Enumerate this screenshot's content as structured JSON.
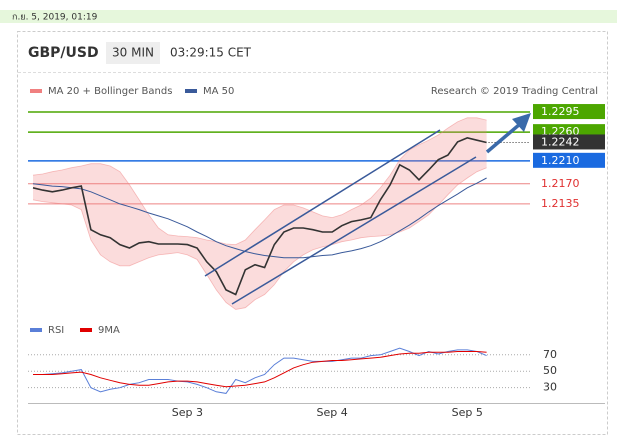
{
  "timestamp": "ก.ย. 5, 2019, 01:19",
  "header": {
    "symbol": "GBP/USD",
    "interval": "30 MIN",
    "time": "03:29:15 CET",
    "credit": "Research © 2019 Trading Central"
  },
  "chart_data": [
    {
      "type": "line",
      "categories": [
        null,
        null,
        null,
        null,
        null,
        null,
        null,
        null,
        null,
        null,
        null,
        null,
        null,
        null,
        null,
        null,
        "Sep 3",
        null,
        null,
        null,
        null,
        null,
        null,
        null,
        null,
        null,
        null,
        null,
        null,
        null,
        null,
        "Sep 4",
        null,
        null,
        null,
        null,
        null,
        null,
        null,
        null,
        null,
        null,
        null,
        null,
        null,
        "Sep 5",
        null,
        null
      ],
      "price": {
        "color": "#333333",
        "values": [
          1.2163,
          1.2159,
          1.2156,
          1.2159,
          1.2163,
          1.2166,
          1.209,
          1.2081,
          1.2076,
          1.2064,
          1.2058,
          1.2067,
          1.2069,
          1.2065,
          1.2065,
          1.2065,
          1.2064,
          1.2058,
          1.2034,
          1.2017,
          1.1985,
          1.1977,
          1.202,
          1.2029,
          1.2024,
          1.2064,
          1.2086,
          1.2093,
          1.2093,
          1.209,
          1.2086,
          1.2086,
          1.2097,
          1.2104,
          1.2107,
          1.2111,
          1.2142,
          1.2168,
          1.2203,
          1.2194,
          1.2177,
          1.2194,
          1.2212,
          1.222,
          1.2243,
          1.225,
          1.2246,
          1.2242
        ]
      },
      "series": [
        {
          "name": "MA 20 + Bollinger Bands",
          "color": "#f08080",
          "upper": [
            1.2185,
            1.2187,
            1.2191,
            1.2194,
            1.2198,
            1.2201,
            1.2205,
            1.2205,
            1.2201,
            1.2191,
            1.2168,
            1.2142,
            1.2116,
            1.2093,
            1.2081,
            1.2079,
            1.2078,
            1.2076,
            1.2072,
            1.2069,
            1.2065,
            1.2064,
            1.2072,
            1.209,
            1.2107,
            1.2125,
            1.2133,
            1.2133,
            1.2128,
            1.2121,
            1.2114,
            1.2111,
            1.2116,
            1.2125,
            1.2133,
            1.2145,
            1.2163,
            1.2185,
            1.2212,
            1.2229,
            1.2238,
            1.2246,
            1.2255,
            1.2267,
            1.2278,
            1.2285,
            1.2285,
            1.2281
          ],
          "lower": [
            1.2142,
            1.2139,
            1.2137,
            1.2135,
            1.2133,
            1.2125,
            1.2072,
            1.2046,
            1.2034,
            1.2027,
            1.2027,
            1.2034,
            1.2041,
            1.2046,
            1.2048,
            1.205,
            1.2046,
            1.2038,
            1.2012,
            1.1985,
            1.1963,
            1.1951,
            1.1954,
            1.1968,
            1.1977,
            1.1994,
            1.2017,
            1.2034,
            1.2046,
            1.2055,
            1.206,
            1.2064,
            1.2069,
            1.2072,
            1.2076,
            1.2078,
            1.2079,
            1.2081,
            1.2086,
            1.2093,
            1.2104,
            1.2116,
            1.2133,
            1.2151,
            1.2168,
            1.218,
            1.2191,
            1.2198
          ]
        },
        {
          "name": "MA 50",
          "color": "#3a5a9a",
          "values": [
            1.217,
            1.2168,
            1.2166,
            1.2165,
            1.2163,
            1.2161,
            1.2156,
            1.2149,
            1.2142,
            1.2135,
            1.213,
            1.2125,
            1.2119,
            1.2114,
            1.2109,
            1.2102,
            1.2095,
            1.2086,
            1.2078,
            1.2069,
            1.2062,
            1.2057,
            1.2052,
            1.2048,
            1.2045,
            1.2043,
            1.2041,
            1.2041,
            1.2041,
            1.2043,
            1.2045,
            1.2046,
            1.205,
            1.2053,
            1.2057,
            1.2062,
            1.2069,
            1.2078,
            1.2088,
            1.2098,
            1.2109,
            1.2121,
            1.2132,
            1.2142,
            1.2152,
            1.2163,
            1.2171,
            1.218
          ]
        }
      ],
      "levels": [
        {
          "value": 1.2295,
          "label": "1.2295",
          "color": "#4ca600",
          "style": "box"
        },
        {
          "value": 1.226,
          "label": "1.2260",
          "color": "#4ca600",
          "style": "box"
        },
        {
          "value": 1.2242,
          "label": "1.2242",
          "color": "#333333",
          "style": "current"
        },
        {
          "value": 1.221,
          "label": "1.2210",
          "color": "#1a6ae0",
          "style": "box"
        },
        {
          "value": 1.217,
          "label": "1.2170",
          "color": "#e03030",
          "style": "text"
        },
        {
          "value": 1.2135,
          "label": "1.2135",
          "color": "#e03030",
          "style": "text"
        }
      ],
      "ylim": [
        1.195,
        1.2316
      ]
    },
    {
      "type": "line",
      "series": [
        {
          "name": "RSI",
          "color": "#5a7fd8",
          "values": [
            46,
            46,
            47,
            48,
            50,
            52,
            30,
            25,
            28,
            30,
            34,
            36,
            40,
            40,
            40,
            38,
            37,
            34,
            30,
            25,
            23,
            40,
            36,
            42,
            46,
            58,
            66,
            66,
            64,
            62,
            62,
            62,
            64,
            66,
            66,
            69,
            70,
            74,
            78,
            74,
            69,
            74,
            71,
            74,
            76,
            76,
            74,
            69
          ]
        },
        {
          "name": "9MA",
          "color": "#e00000",
          "values": [
            46,
            46,
            46,
            47,
            48,
            49,
            46,
            42,
            39,
            36,
            34,
            33,
            33,
            35,
            37,
            38,
            38,
            37,
            35,
            33,
            31,
            32,
            33,
            35,
            37,
            42,
            48,
            54,
            58,
            61,
            62,
            63,
            63,
            64,
            65,
            66,
            67,
            69,
            71,
            72,
            72,
            73,
            73,
            73,
            74,
            74,
            74,
            73
          ]
        }
      ],
      "ylim": [
        15,
        88
      ],
      "yticks": [
        70,
        50,
        30
      ],
      "grid": true
    }
  ]
}
